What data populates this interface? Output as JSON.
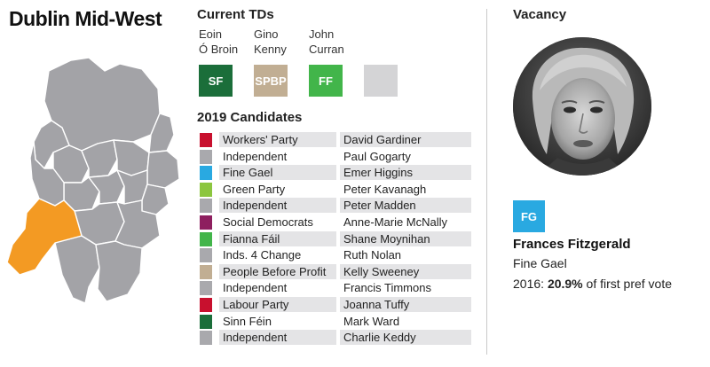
{
  "constituency": "Dublin Mid-West",
  "current_tds": {
    "title": "Current TDs",
    "members": [
      {
        "first": "Eoin",
        "last": "Ó Broin",
        "party": "SF",
        "color": "#1b6e3a"
      },
      {
        "first": "Gino",
        "last": "Kenny",
        "party": "SPBP",
        "color": "#c1ae93"
      },
      {
        "first": "John",
        "last": "Curran",
        "party": "FF",
        "color": "#42b54a"
      }
    ],
    "vacant_seat_color": "#d4d4d6"
  },
  "candidates": {
    "title": "2019 Candidates",
    "rows": [
      {
        "party": "Workers' Party",
        "name": "David Gardiner",
        "color": "#c8102e"
      },
      {
        "party": "Independent",
        "name": "Paul Gogarty",
        "color": "#a9a9ad"
      },
      {
        "party": "Fine Gael",
        "name": "Emer Higgins",
        "color": "#29a9e1"
      },
      {
        "party": "Green Party",
        "name": "Peter Kavanagh",
        "color": "#8cc63f"
      },
      {
        "party": "Independent",
        "name": "Peter Madden",
        "color": "#a9a9ad"
      },
      {
        "party": "Social Democrats",
        "name": "Anne-Marie McNally",
        "color": "#8e1f5f"
      },
      {
        "party": "Fianna Fáil",
        "name": "Shane Moynihan",
        "color": "#42b54a"
      },
      {
        "party": "Inds. 4 Change",
        "name": "Ruth Nolan",
        "color": "#a9a9ad"
      },
      {
        "party": "People Before Profit",
        "name": "Kelly Sweeney",
        "color": "#c1ae93"
      },
      {
        "party": "Independent",
        "name": "Francis Timmons",
        "color": "#a9a9ad"
      },
      {
        "party": "Labour Party",
        "name": "Joanna Tuffy",
        "color": "#c8102e"
      },
      {
        "party": "Sinn Féin",
        "name": "Mark Ward",
        "color": "#1b6e3a"
      },
      {
        "party": "Independent",
        "name": "Charlie Keddy",
        "color": "#a9a9ad"
      }
    ]
  },
  "vacancy": {
    "title": "Vacancy",
    "badge": "FG",
    "badge_color": "#29a9e1",
    "name": "Frances Fitzgerald",
    "party": "Fine Gael",
    "result_prefix": "2016: ",
    "result_value": "20.9%",
    "result_suffix": " of first pref vote"
  },
  "map": {
    "highlight_color": "#f39a23",
    "region_color": "#a3a3a7",
    "border_color": "#ffffff"
  }
}
